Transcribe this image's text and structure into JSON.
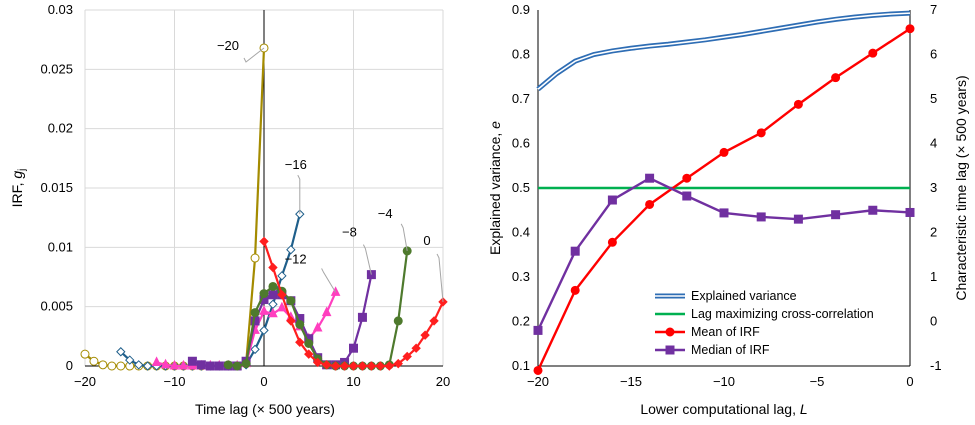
{
  "chart_data": [
    {
      "type": "line",
      "xlabel": "Time lag (× 500 years)",
      "ylabel_main": "IRF, ",
      "ylabel_italic": "g",
      "ylabel_sub": "j",
      "xlim": [
        -20,
        20
      ],
      "ylim": [
        0,
        0.03
      ],
      "xticks": [
        "−20",
        "−10",
        "0",
        "10",
        "20"
      ],
      "yticks": [
        "0",
        "0.005",
        "0.01",
        "0.015",
        "0.02",
        "0.025",
        "0.03"
      ],
      "grid": true,
      "series": [
        {
          "label": "−20",
          "color": "#a48b00",
          "marker": "circle-open",
          "x": [
            -20,
            -19,
            -18,
            -17,
            -16,
            -15,
            -14,
            -13,
            -12,
            -11,
            -10,
            -9,
            -8,
            -7,
            -6,
            -5,
            -4,
            -3,
            -2,
            -1,
            0
          ],
          "y": [
            0.001,
            0.0004,
            0.0001,
            0,
            0,
            0,
            0,
            0,
            0,
            0,
            0,
            0,
            0,
            0,
            0,
            0,
            0,
            0,
            0.0002,
            0.0091,
            0.0268
          ]
        },
        {
          "label": "−16",
          "color": "#1f5f8b",
          "marker": "diamond-open",
          "x": [
            -16,
            -15,
            -14,
            -13,
            -12,
            -11,
            -10,
            -9,
            -8,
            -7,
            -6,
            -5,
            -4,
            -3,
            -2,
            -1,
            0,
            1,
            2,
            3,
            4
          ],
          "y": [
            0.0012,
            0.0005,
            0.0001,
            0,
            0,
            0,
            0,
            0,
            0,
            0,
            0,
            0,
            0,
            0,
            0.0001,
            0.0014,
            0.003,
            0.0052,
            0.0076,
            0.0098,
            0.0128
          ]
        },
        {
          "label": "−12",
          "color": "#ff3fbf",
          "marker": "triangle",
          "x": [
            -12,
            -11,
            -10,
            -9,
            -8,
            -7,
            -6,
            -5,
            -4,
            -3,
            -2,
            -1,
            0,
            1,
            2,
            3,
            4,
            5,
            6,
            7,
            8
          ],
          "y": [
            0.0003,
            0.0001,
            0,
            0,
            0,
            0,
            0,
            0,
            0,
            0,
            0.0002,
            0.003,
            0.0046,
            0.0044,
            0.0049,
            0.0041,
            0.0033,
            0.0023,
            0.0032,
            0.0045,
            0.0062
          ]
        },
        {
          "label": "−8",
          "color": "#7030a0",
          "marker": "square",
          "x": [
            -8,
            -7,
            -6,
            -5,
            -4,
            -3,
            -2,
            -1,
            0,
            1,
            2,
            3,
            4,
            5,
            6,
            7,
            8,
            9,
            10,
            11,
            12
          ],
          "y": [
            0.0004,
            0.0001,
            0,
            0,
            0,
            0,
            0.0004,
            0.0038,
            0.0056,
            0.006,
            0.006,
            0.0055,
            0.004,
            0.0023,
            0.0007,
            0.0001,
            0.0001,
            0.0003,
            0.0015,
            0.0041,
            0.0077
          ]
        },
        {
          "label": "−4",
          "color": "#4e7a2d",
          "marker": "circle",
          "x": [
            -4,
            -3,
            -2,
            -1,
            0,
            1,
            2,
            3,
            4,
            5,
            6,
            7,
            8,
            9,
            10,
            11,
            12,
            13,
            14,
            15,
            16
          ],
          "y": [
            0.0001,
            0,
            0.0002,
            0.0045,
            0.0061,
            0.0067,
            0.0063,
            0.0055,
            0.0035,
            0.0019,
            0.0006,
            0.0001,
            0,
            0,
            0,
            0,
            0,
            0,
            0.0001,
            0.0038,
            0.0097
          ]
        },
        {
          "label": "0",
          "color": "#ff1f1f",
          "marker": "diamond",
          "x": [
            0,
            1,
            2,
            3,
            4,
            5,
            6,
            7,
            8,
            9,
            10,
            11,
            12,
            13,
            14,
            15,
            16,
            17,
            18,
            19,
            20
          ],
          "y": [
            0.0105,
            0.0083,
            0.006,
            0.0038,
            0.002,
            0.001,
            0.0003,
            0.0001,
            0,
            0,
            0,
            0,
            0,
            0,
            0,
            0.0002,
            0.0008,
            0.0015,
            0.0026,
            0.0038,
            0.0054
          ]
        }
      ]
    },
    {
      "type": "line",
      "xlabel_main": "Lower computational lag, ",
      "xlabel_italic": "L",
      "ylabel_main": "Explained variance, ",
      "ylabel_italic": "e",
      "y2label": "Characteristic time lag (× 500 years)",
      "xlim": [
        -20,
        0
      ],
      "ylim": [
        0.1,
        0.9
      ],
      "y2lim": [
        -1,
        7
      ],
      "xticks": [
        "−20",
        "−15",
        "−10",
        "−5",
        "0"
      ],
      "yticks": [
        "0.1",
        "0.2",
        "0.3",
        "0.4",
        "0.5",
        "0.6",
        "0.7",
        "0.8",
        "0.9"
      ],
      "y2ticks": [
        "-1",
        "0",
        "1",
        "2",
        "3",
        "4",
        "5",
        "6",
        "7"
      ],
      "grid": false,
      "legend_position": "bottom-right",
      "series": [
        {
          "name": "Explained variance",
          "axis": "left",
          "style": "double-line",
          "color": "#2e6db4",
          "x": [
            -20,
            -19,
            -18,
            -17,
            -16,
            -15,
            -14,
            -13,
            -12,
            -11,
            -10,
            -9,
            -8,
            -7,
            -6,
            -5,
            -4,
            -3,
            -2,
            -1,
            0
          ],
          "y": [
            0.722,
            0.757,
            0.785,
            0.8,
            0.808,
            0.814,
            0.819,
            0.823,
            0.828,
            0.833,
            0.839,
            0.845,
            0.852,
            0.859,
            0.866,
            0.873,
            0.879,
            0.884,
            0.888,
            0.891,
            0.893
          ]
        },
        {
          "name": "Lag maximizing cross-correlation",
          "axis": "right",
          "style": "line",
          "color": "#00b050",
          "x": [
            -20,
            0
          ],
          "y": [
            3,
            3
          ]
        },
        {
          "name": "Mean of IRF",
          "axis": "right",
          "style": "line-circle",
          "color": "#ff0000",
          "x": [
            -20,
            -18,
            -16,
            -14,
            -12,
            -10,
            -8,
            -6,
            -4,
            -2,
            0
          ],
          "y": [
            -1.1,
            0.7,
            1.78,
            2.63,
            3.22,
            3.8,
            4.24,
            4.88,
            5.48,
            6.03,
            6.58
          ]
        },
        {
          "name": "Median of IRF",
          "axis": "right",
          "style": "line-square",
          "color": "#7030a0",
          "x": [
            -20,
            -18,
            -16,
            -14,
            -12,
            -10,
            -8,
            -6,
            -4,
            -2,
            0
          ],
          "y": [
            -0.2,
            1.58,
            2.73,
            3.22,
            2.82,
            2.44,
            2.35,
            2.3,
            2.4,
            2.5,
            2.45
          ]
        }
      ]
    }
  ]
}
